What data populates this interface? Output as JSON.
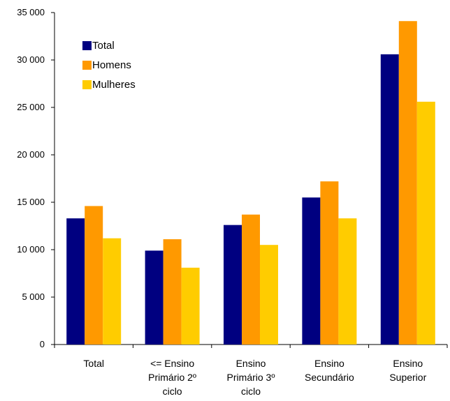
{
  "chart_data": {
    "type": "bar",
    "title": "",
    "xlabel": "",
    "ylabel": "",
    "ylim": [
      0,
      35000
    ],
    "yticks": [
      0,
      5000,
      10000,
      15000,
      20000,
      25000,
      30000,
      35000
    ],
    "ytick_labels": [
      "0",
      "5 000",
      "10 000",
      "15 000",
      "20 000",
      "25 000",
      "30 000",
      "35 000"
    ],
    "grid": false,
    "legend_position": "top-left",
    "categories": [
      [
        "Total"
      ],
      [
        "<= Ensino",
        "Primário 2º",
        "ciclo"
      ],
      [
        "Ensino",
        "Primário 3º",
        "ciclo"
      ],
      [
        "Ensino",
        "Secundário"
      ],
      [
        "Ensino",
        "Superior"
      ]
    ],
    "series": [
      {
        "name": "Total",
        "color": "#000080",
        "values": [
          13300,
          9900,
          12600,
          15500,
          30600
        ]
      },
      {
        "name": "Homens",
        "color": "#FF9900",
        "values": [
          14600,
          11100,
          13700,
          17200,
          34100
        ]
      },
      {
        "name": "Mulheres",
        "color": "#FFCC00",
        "values": [
          11200,
          8100,
          10500,
          13300,
          25600
        ]
      }
    ]
  }
}
